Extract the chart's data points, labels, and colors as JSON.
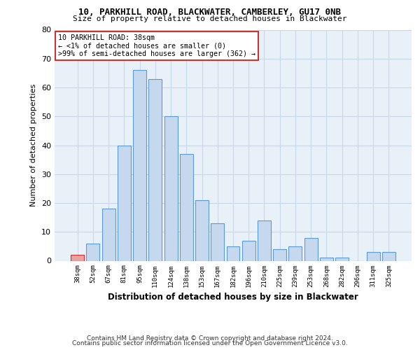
{
  "title1": "10, PARKHILL ROAD, BLACKWATER, CAMBERLEY, GU17 0NB",
  "title2": "Size of property relative to detached houses in Blackwater",
  "xlabel": "Distribution of detached houses by size in Blackwater",
  "ylabel": "Number of detached properties",
  "categories": [
    "38sqm",
    "52sqm",
    "67sqm",
    "81sqm",
    "95sqm",
    "110sqm",
    "124sqm",
    "138sqm",
    "153sqm",
    "167sqm",
    "182sqm",
    "196sqm",
    "210sqm",
    "225sqm",
    "239sqm",
    "253sqm",
    "268sqm",
    "282sqm",
    "296sqm",
    "311sqm",
    "325sqm"
  ],
  "values": [
    2,
    6,
    18,
    40,
    66,
    63,
    50,
    37,
    21,
    13,
    5,
    7,
    14,
    4,
    5,
    8,
    1,
    1,
    0,
    3,
    3
  ],
  "bar_color": "#c5d8ed",
  "bar_edge_color": "#5b9bd5",
  "highlight_index": 0,
  "highlight_bar_color": "#e8a0a0",
  "highlight_bar_edge_color": "#cc3333",
  "annotation_line1": "10 PARKHILL ROAD: 38sqm",
  "annotation_line2": "← <1% of detached houses are smaller (0)",
  "annotation_line3": ">99% of semi-detached houses are larger (362) →",
  "annotation_box_color": "#ffffff",
  "annotation_box_edge_color": "#cc3333",
  "ylim": [
    0,
    80
  ],
  "yticks": [
    0,
    10,
    20,
    30,
    40,
    50,
    60,
    70,
    80
  ],
  "grid_color": "#c8d8e8",
  "bg_color": "#e8f0f8",
  "fig_bg_color": "#ffffff",
  "footer1": "Contains HM Land Registry data © Crown copyright and database right 2024.",
  "footer2": "Contains public sector information licensed under the Open Government Licence v3.0."
}
